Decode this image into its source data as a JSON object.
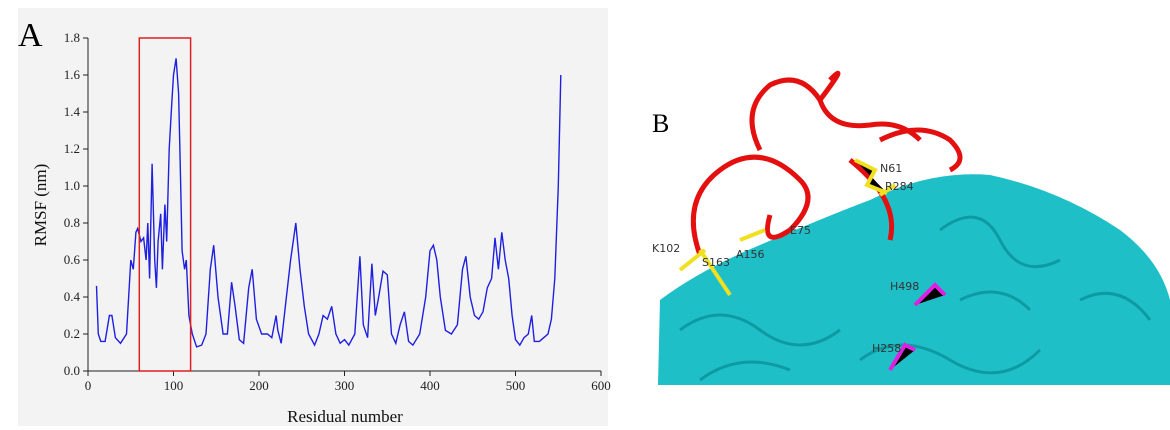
{
  "chart_data": {
    "type": "line",
    "panel_label": "A",
    "xlabel": "Residual number",
    "ylabel": "RMSF (nm)",
    "color": "#1f1fe0",
    "x": [
      10,
      12,
      15,
      20,
      25,
      28,
      32,
      38,
      45,
      50,
      53,
      56,
      58,
      62,
      65,
      68,
      70,
      72,
      75,
      78,
      80,
      82,
      85,
      87,
      90,
      92,
      95,
      98,
      100,
      103,
      106,
      108,
      110,
      113,
      115,
      118,
      122,
      127,
      133,
      138,
      143,
      147,
      152,
      158,
      163,
      168,
      172,
      177,
      182,
      188,
      192,
      197,
      203,
      210,
      215,
      220,
      222,
      226,
      232,
      237,
      243,
      248,
      253,
      258,
      265,
      270,
      275,
      280,
      285,
      290,
      295,
      300,
      305,
      312,
      318,
      322,
      327,
      332,
      336,
      340,
      345,
      350,
      355,
      360,
      365,
      370,
      375,
      380,
      388,
      395,
      400,
      404,
      408,
      412,
      418,
      425,
      432,
      438,
      442,
      447,
      452,
      457,
      462,
      467,
      472,
      476,
      480,
      484,
      488,
      492,
      496,
      500,
      505,
      510,
      515,
      519,
      522,
      528,
      533,
      538,
      542,
      546,
      550,
      553
    ],
    "values": [
      0.46,
      0.2,
      0.16,
      0.16,
      0.3,
      0.3,
      0.18,
      0.15,
      0.2,
      0.6,
      0.55,
      0.75,
      0.77,
      0.7,
      0.72,
      0.6,
      0.8,
      0.5,
      1.12,
      0.6,
      0.45,
      0.7,
      0.85,
      0.55,
      0.9,
      0.7,
      1.2,
      1.45,
      1.6,
      1.69,
      1.5,
      1.1,
      0.65,
      0.55,
      0.6,
      0.3,
      0.2,
      0.13,
      0.14,
      0.2,
      0.55,
      0.68,
      0.4,
      0.2,
      0.2,
      0.48,
      0.35,
      0.17,
      0.15,
      0.45,
      0.55,
      0.28,
      0.2,
      0.2,
      0.18,
      0.3,
      0.22,
      0.15,
      0.4,
      0.6,
      0.8,
      0.55,
      0.35,
      0.2,
      0.14,
      0.2,
      0.3,
      0.28,
      0.35,
      0.2,
      0.15,
      0.17,
      0.14,
      0.2,
      0.62,
      0.25,
      0.18,
      0.58,
      0.3,
      0.4,
      0.54,
      0.52,
      0.2,
      0.15,
      0.25,
      0.32,
      0.16,
      0.14,
      0.2,
      0.4,
      0.65,
      0.68,
      0.6,
      0.4,
      0.22,
      0.2,
      0.25,
      0.55,
      0.62,
      0.4,
      0.3,
      0.28,
      0.32,
      0.45,
      0.5,
      0.72,
      0.55,
      0.75,
      0.6,
      0.5,
      0.3,
      0.17,
      0.14,
      0.18,
      0.2,
      0.3,
      0.16,
      0.16,
      0.18,
      0.2,
      0.28,
      0.5,
      1.0,
      1.6
    ],
    "xlim": [
      0,
      600
    ],
    "xticks": [
      0,
      100,
      200,
      300,
      400,
      500,
      600
    ],
    "ylim": [
      0,
      1.8
    ],
    "yticks": [
      {
        "value": 0,
        "label": "0.0"
      },
      {
        "value": 0.2,
        "label": "0.2"
      },
      {
        "value": 0.4,
        "label": "0.4"
      },
      {
        "value": 0.6,
        "label": "0.6"
      },
      {
        "value": 0.8,
        "label": "0.8"
      },
      {
        "value": 1,
        "label": "1.0"
      },
      {
        "value": 1.2,
        "label": "1.2"
      },
      {
        "value": 1.4,
        "label": "1.4"
      },
      {
        "value": 1.6,
        "label": "1.6"
      },
      {
        "value": 1.8,
        "label": "1.8"
      }
    ],
    "highlight": {
      "x": [
        60,
        120
      ],
      "color": "#e02020"
    }
  },
  "panel_b": {
    "label": "B",
    "residues": [
      "N61",
      "R284",
      "E75",
      "K102",
      "S163",
      "A156",
      "H498",
      "H258"
    ]
  }
}
